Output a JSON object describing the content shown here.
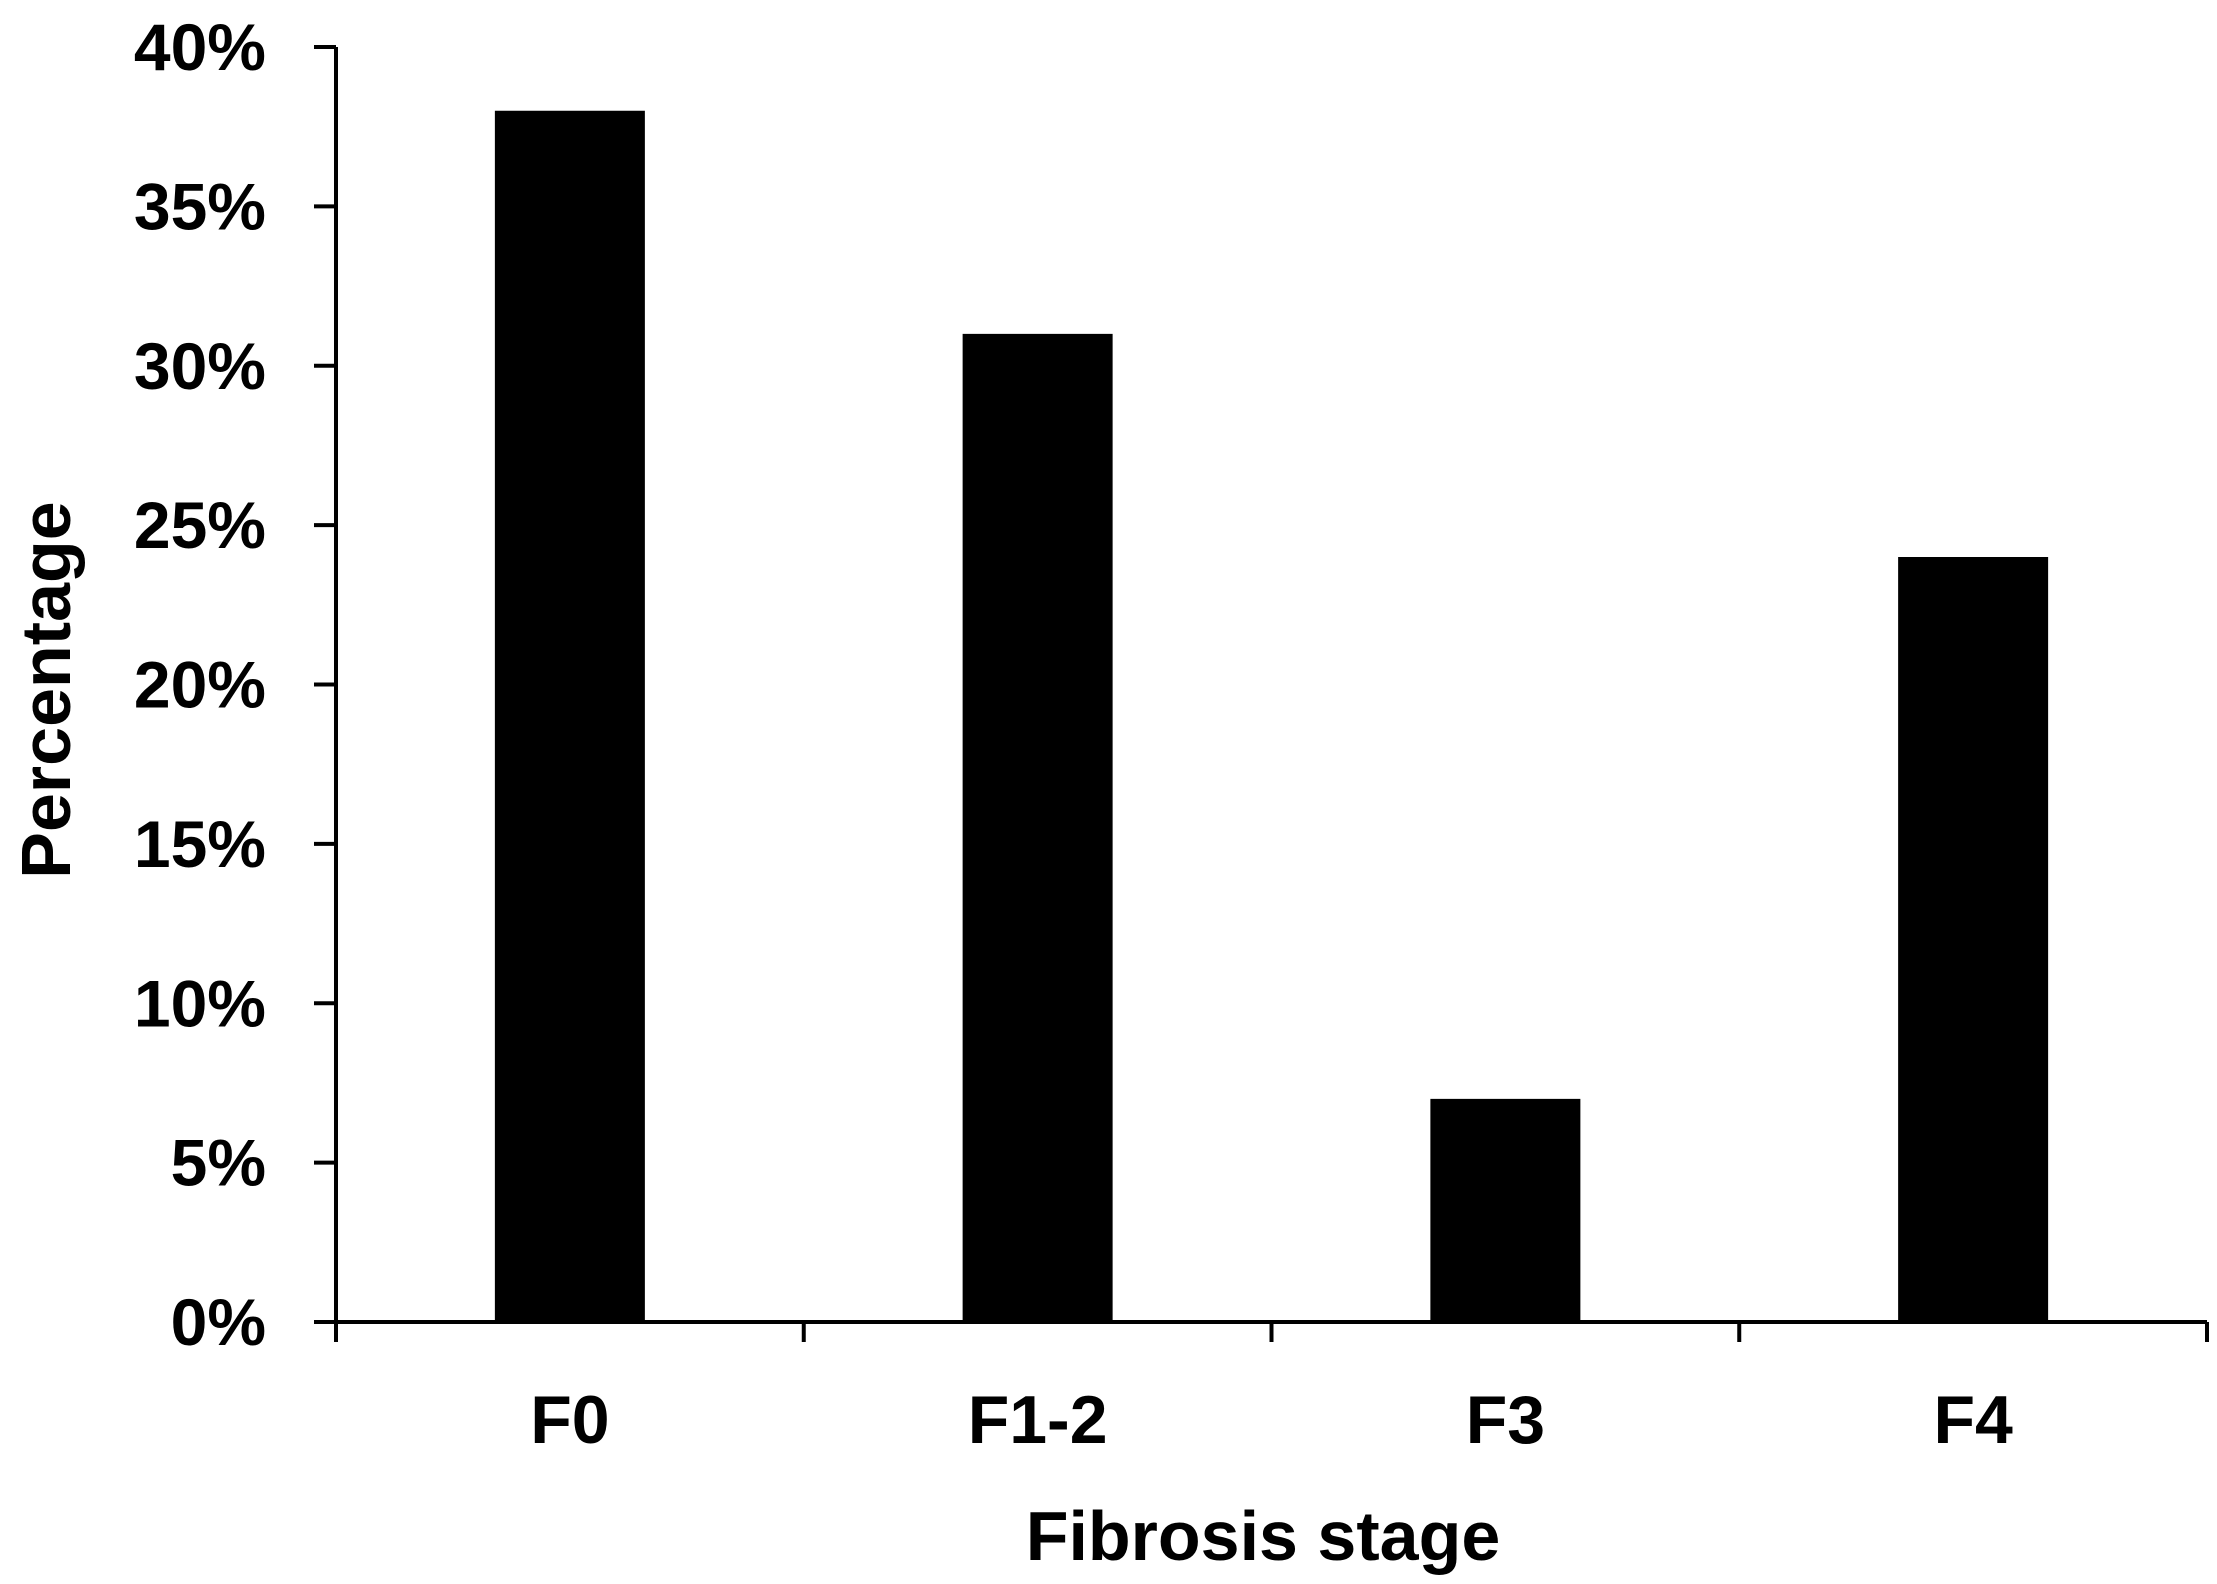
{
  "chart_data": {
    "type": "bar",
    "categories": [
      "F0",
      "F1-2",
      "F3",
      "F4"
    ],
    "values": [
      38,
      31,
      7,
      24
    ],
    "xlabel": "Fibrosis stage",
    "ylabel": "Percentage",
    "ylim": [
      0,
      40
    ],
    "yticks": [
      "0%",
      "5%",
      "10%",
      "15%",
      "20%",
      "25%",
      "30%",
      "35%",
      "40%"
    ],
    "grid": false,
    "bar_color": "#000000",
    "axis_color": "#000000"
  }
}
